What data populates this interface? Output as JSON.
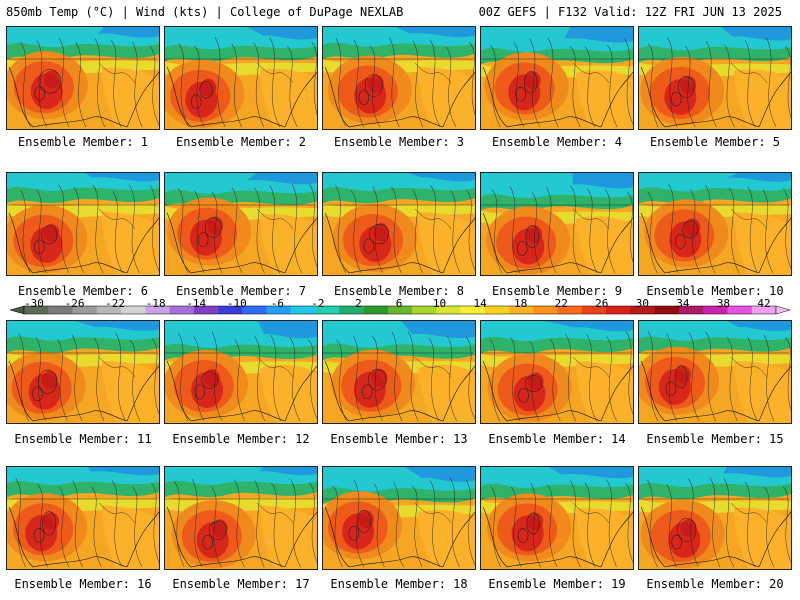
{
  "header": {
    "left": "850mb Temp (°C) | Wind (kts) | College of DuPage NEXLAB",
    "right": "00Z GEFS | F132 Valid: 12Z FRI JUN 13 2025"
  },
  "panels": [
    {
      "label": "Ensemble Member: 1"
    },
    {
      "label": "Ensemble Member: 2"
    },
    {
      "label": "Ensemble Member: 3"
    },
    {
      "label": "Ensemble Member: 4"
    },
    {
      "label": "Ensemble Member: 5"
    },
    {
      "label": "Ensemble Member: 6"
    },
    {
      "label": "Ensemble Member: 7"
    },
    {
      "label": "Ensemble Member: 8"
    },
    {
      "label": "Ensemble Member: 9"
    },
    {
      "label": "Ensemble Member: 10"
    },
    {
      "label": "Ensemble Member: 11"
    },
    {
      "label": "Ensemble Member: 12"
    },
    {
      "label": "Ensemble Member: 13"
    },
    {
      "label": "Ensemble Member: 14"
    },
    {
      "label": "Ensemble Member: 15"
    },
    {
      "label": "Ensemble Member: 16"
    },
    {
      "label": "Ensemble Member: 17"
    },
    {
      "label": "Ensemble Member: 18"
    },
    {
      "label": "Ensemble Member: 19"
    },
    {
      "label": "Ensemble Member: 20"
    }
  ],
  "colorbar": {
    "labels": [
      "-30",
      "-26",
      "-22",
      "-18",
      "-14",
      "-10",
      "-6",
      "-2",
      "2",
      "6",
      "10",
      "14",
      "18",
      "22",
      "26",
      "30",
      "34",
      "38",
      "42"
    ],
    "colors": [
      "#5d6b55",
      "#7b7b7b",
      "#9a9a9a",
      "#b8b8b8",
      "#d3d3d3",
      "#c8a2e8",
      "#a270d8",
      "#7f3fc8",
      "#3b3bd9",
      "#2d6cf0",
      "#1fa2f5",
      "#20c8e8",
      "#20d0b0",
      "#1fb070",
      "#2c9a2c",
      "#66b82c",
      "#a8d42c",
      "#d8e830",
      "#fff030",
      "#ffd020",
      "#ffb020",
      "#ff9018",
      "#ff6a18",
      "#f04018",
      "#d82018",
      "#b81818",
      "#901010",
      "#b0186a",
      "#d020b0",
      "#e850e0",
      "#f0a0f0"
    ]
  }
}
